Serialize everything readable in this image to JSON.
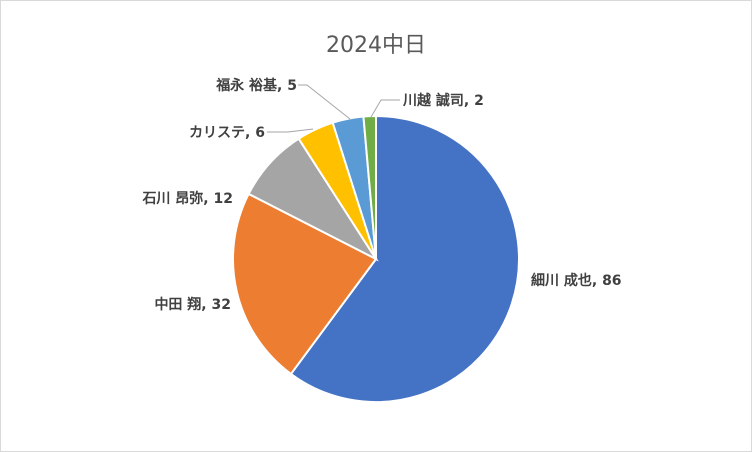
{
  "chart_data": {
    "type": "pie",
    "title": "2024中日",
    "categories": [
      "細川 成也",
      "中田 翔",
      "石川 昂弥",
      "カリステ",
      "福永 裕基",
      "川越 誠司"
    ],
    "values": [
      86,
      32,
      12,
      6,
      5,
      2
    ],
    "colors": [
      "#4472C4",
      "#ED7D31",
      "#A5A5A5",
      "#FFC000",
      "#5B9BD5",
      "#70AD47"
    ],
    "data_labels": [
      "細川 成也, 86",
      "中田 翔, 32",
      "石川 昂弥, 12",
      "カリステ, 6",
      "福永 裕基, 5",
      "川越 誠司, 2"
    ],
    "start_angle_deg": 90,
    "direction": "clockwise",
    "legend": "none"
  }
}
